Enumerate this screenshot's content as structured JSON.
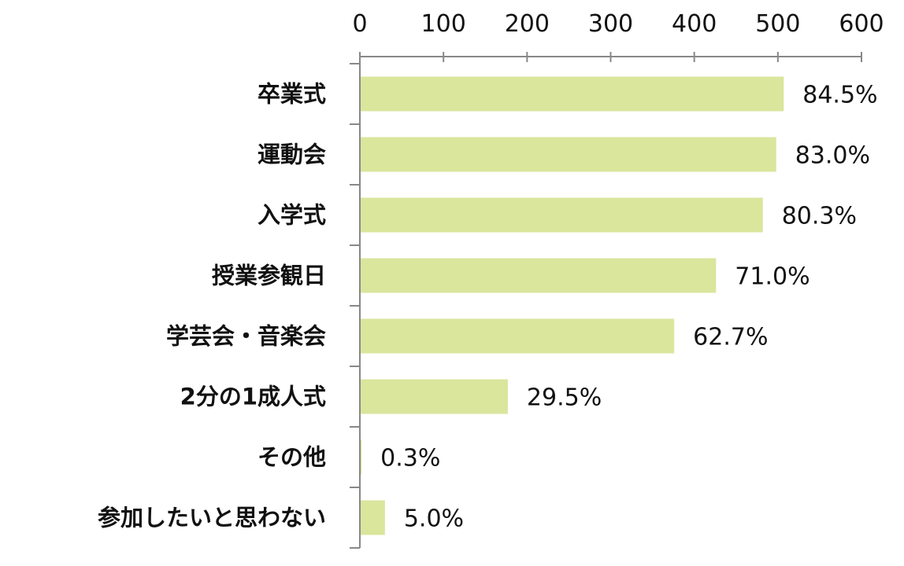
{
  "chart_data": {
    "type": "bar",
    "orientation": "horizontal",
    "categories": [
      "卒業式",
      "運動会",
      "入学式",
      "授業参観日",
      "学芸会・音楽会",
      "2分の1成人式",
      "その他",
      "参加したいと思わない"
    ],
    "values": [
      507,
      498,
      482,
      426,
      376,
      177,
      2,
      30
    ],
    "data_labels": [
      "84.5%",
      "83.0%",
      "80.3%",
      "71.0%",
      "62.7%",
      "29.5%",
      "0.3%",
      "5.0%"
    ],
    "xlim": [
      0,
      600
    ],
    "xticks": [
      0,
      100,
      200,
      300,
      400,
      500,
      600
    ],
    "xaxis_position": "top",
    "grid": false,
    "bar_color": "#d9e69c"
  }
}
